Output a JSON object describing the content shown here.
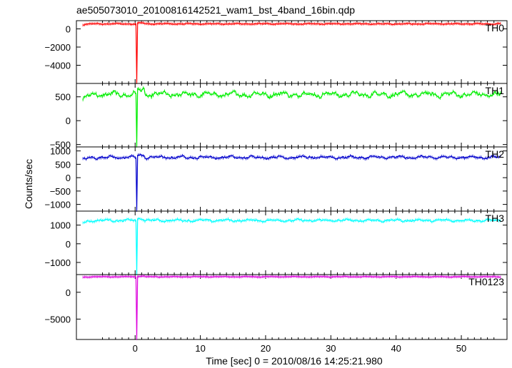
{
  "figure": {
    "title": "ae505073010_20100816142521_wam1_bst_4band_16bin.qdp",
    "ylabel": "Counts/sec",
    "xlabel": "Time [sec] 0 = 2010/08/16 14:25:21.980"
  },
  "chart_data": {
    "type": "line",
    "title": "ae505073010_20100816142521_wam1_bst_4band_16bin.qdp",
    "xlabel": "Time [sec] 0 = 2010/08/16 14:25:21.980",
    "ylabel": "Counts/sec",
    "xlim": [
      -9,
      57
    ],
    "xticks": [
      0,
      10,
      20,
      30,
      40,
      50
    ],
    "grid": false,
    "panels": [
      {
        "name": "TH0",
        "color": "#ff0000",
        "ylim": [
          -6000,
          900
        ],
        "yticks": [
          0,
          -2000,
          -4000
        ],
        "baseline": 550,
        "noise": 55,
        "dip_time": 0.2,
        "dip_min": -6000,
        "series_points": [
          [
            -8,
            530
          ],
          [
            -4,
            560
          ],
          [
            0,
            540
          ],
          [
            0.2,
            -6000
          ],
          [
            1,
            620
          ],
          [
            10,
            560
          ],
          [
            20,
            570
          ],
          [
            30,
            560
          ],
          [
            40,
            550
          ],
          [
            50,
            560
          ],
          [
            56,
            570
          ]
        ]
      },
      {
        "name": "TH1",
        "color": "#00ee00",
        "ylim": [
          -550,
          780
        ],
        "yticks": [
          500,
          0,
          -500
        ],
        "baseline": 550,
        "noise": 55,
        "dip_time": 0.2,
        "dip_min": -550,
        "series_points": [
          [
            -8,
            450
          ],
          [
            -4,
            540
          ],
          [
            0,
            520
          ],
          [
            0.2,
            -550
          ],
          [
            1,
            620
          ],
          [
            10,
            560
          ],
          [
            20,
            580
          ],
          [
            30,
            560
          ],
          [
            40,
            550
          ],
          [
            50,
            580
          ],
          [
            56,
            560
          ]
        ]
      },
      {
        "name": "TH2",
        "color": "#0000cc",
        "ylim": [
          -1250,
          1150
        ],
        "yticks": [
          1000,
          500,
          0,
          -500,
          -1000
        ],
        "baseline": 760,
        "noise": 50,
        "dip_time": 0.2,
        "dip_min": -1250,
        "series_points": [
          [
            -8,
            650
          ],
          [
            -4,
            760
          ],
          [
            0,
            750
          ],
          [
            0.2,
            -1250
          ],
          [
            1,
            860
          ],
          [
            10,
            780
          ],
          [
            20,
            770
          ],
          [
            30,
            760
          ],
          [
            40,
            760
          ],
          [
            50,
            780
          ],
          [
            56,
            800
          ]
        ]
      },
      {
        "name": "TH3",
        "color": "#00ffff",
        "ylim": [
          -1650,
          1750
        ],
        "yticks": [
          1000,
          0,
          -1000
        ],
        "baseline": 1250,
        "noise": 60,
        "dip_time": 0.2,
        "dip_min": -1650,
        "series_points": [
          [
            -8,
            1150
          ],
          [
            -4,
            1250
          ],
          [
            0,
            1230
          ],
          [
            0.2,
            -1650
          ],
          [
            1,
            1350
          ],
          [
            10,
            1260
          ],
          [
            20,
            1260
          ],
          [
            30,
            1240
          ],
          [
            40,
            1240
          ],
          [
            50,
            1250
          ],
          [
            56,
            1250
          ]
        ]
      },
      {
        "name": "TH0123",
        "color": "#dd00dd",
        "ylim": [
          -8800,
          3300
        ],
        "yticks": [
          0,
          -5000
        ],
        "baseline": 2900,
        "noise": 60,
        "dip_time": 0.2,
        "dip_min": -8800,
        "series_points": [
          [
            -8,
            2800
          ],
          [
            -4,
            2900
          ],
          [
            0,
            2880
          ],
          [
            0.2,
            -8800
          ],
          [
            1,
            3100
          ],
          [
            10,
            2920
          ],
          [
            20,
            2900
          ],
          [
            30,
            2900
          ],
          [
            40,
            2880
          ],
          [
            50,
            2900
          ],
          [
            56,
            2950
          ]
        ]
      }
    ]
  }
}
